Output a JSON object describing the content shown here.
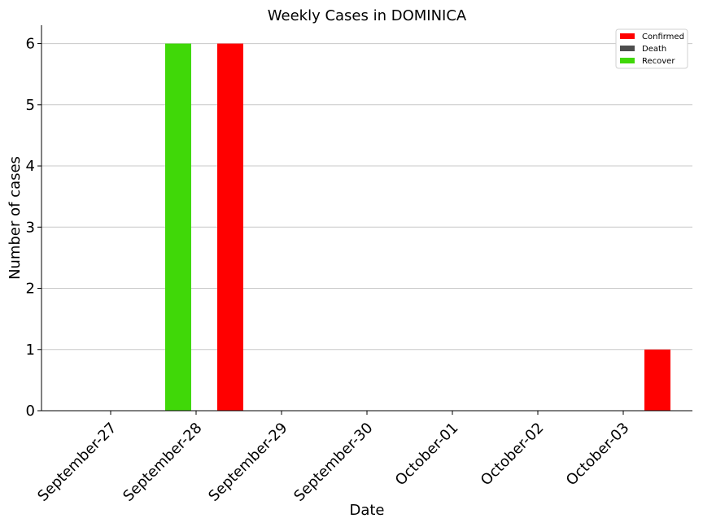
{
  "chart_data": {
    "type": "bar",
    "title": "Weekly Cases in DOMINICA",
    "xlabel": "Date",
    "ylabel": "Number of cases",
    "categories": [
      "September-27",
      "September-28",
      "September-29",
      "September-30",
      "October-01",
      "October-02",
      "October-03"
    ],
    "series": [
      {
        "name": "Confirmed",
        "color": "#ff0000",
        "values": [
          0,
          6,
          0,
          0,
          0,
          0,
          1
        ]
      },
      {
        "name": "Death",
        "color": "#4d4d4d",
        "values": [
          0,
          0,
          0,
          0,
          0,
          0,
          0
        ]
      },
      {
        "name": "Recover",
        "color": "#40d808",
        "values": [
          0,
          6,
          0,
          0,
          0,
          0,
          0
        ]
      }
    ],
    "yticks": [
      0,
      1,
      2,
      3,
      4,
      5,
      6
    ],
    "ylim": [
      0,
      6.3
    ],
    "grid": "horizontal",
    "legend": "top-right"
  }
}
